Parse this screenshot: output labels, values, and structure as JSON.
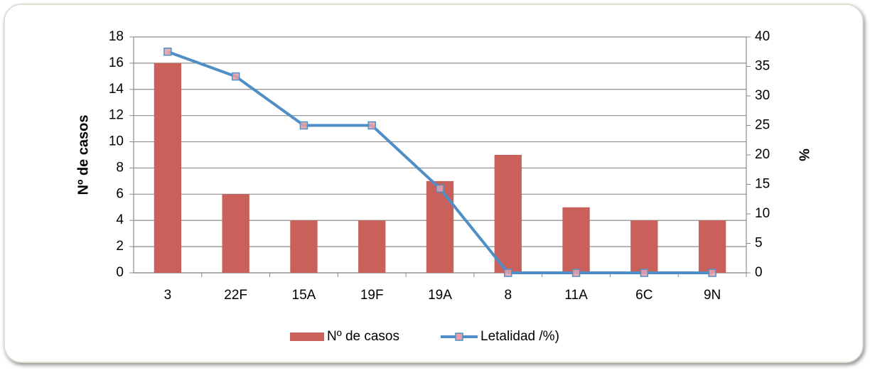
{
  "chart_data": {
    "type": "bar",
    "categories": [
      "3",
      "22F",
      "15A",
      "19F",
      "19A",
      "8",
      "11A",
      "6C",
      "9N"
    ],
    "series": [
      {
        "name": "Nº de casos",
        "type": "bar",
        "color": "#c9605a",
        "values": [
          16,
          6,
          4,
          4,
          7,
          9,
          5,
          4,
          4
        ]
      },
      {
        "name": "Letalidad /%)",
        "type": "line",
        "axis": "y2",
        "color": "#4f8fc6",
        "marker_color": "#e8a0a6",
        "values": [
          37.5,
          33.3,
          25,
          25,
          14.3,
          0,
          0,
          0,
          0
        ]
      }
    ],
    "ylabel": "Nº de casos",
    "y2label": "%",
    "ylim": [
      0,
      18
    ],
    "yticks": [
      0,
      2,
      4,
      6,
      8,
      10,
      12,
      14,
      16,
      18
    ],
    "y2lim": [
      0,
      40
    ],
    "y2ticks": [
      0,
      5,
      10,
      15,
      20,
      25,
      30,
      35,
      40
    ],
    "grid": true,
    "legend": "bottom"
  }
}
